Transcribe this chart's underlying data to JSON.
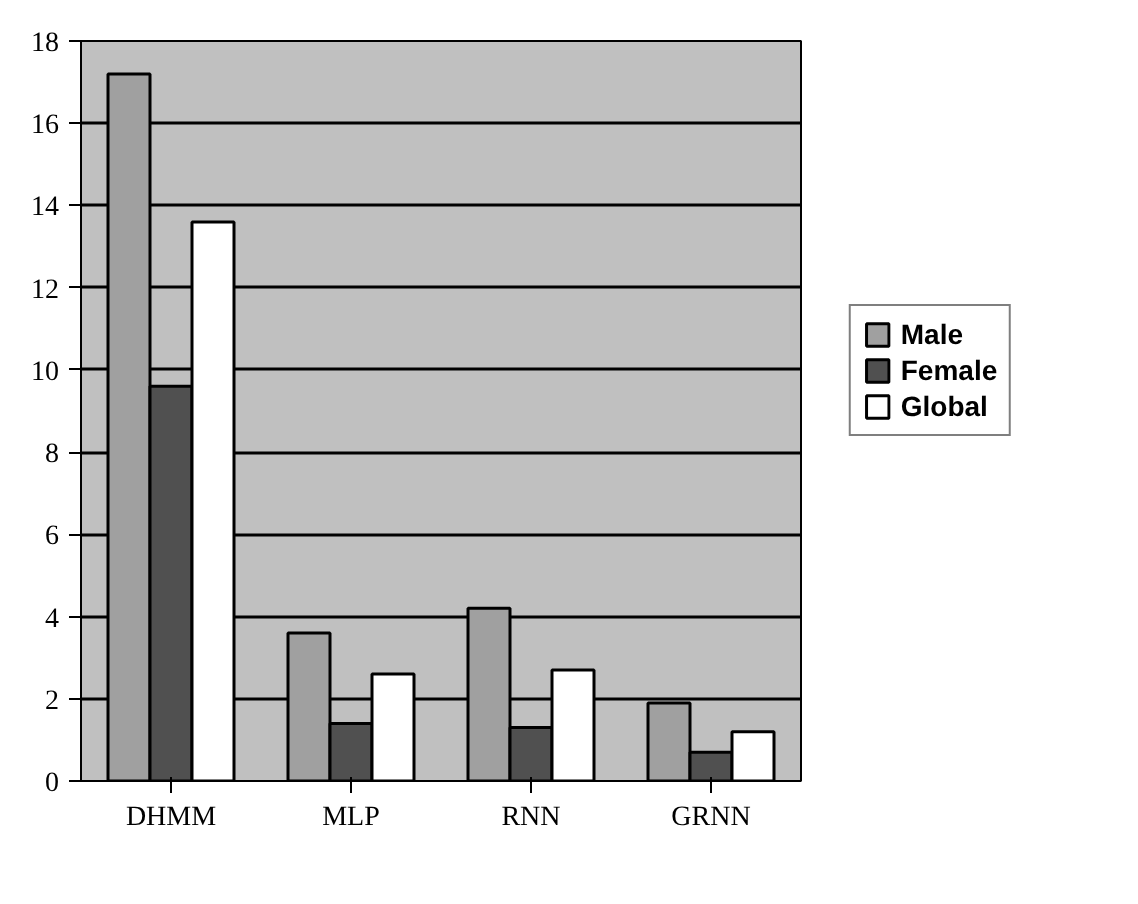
{
  "chart_data": {
    "type": "bar",
    "categories": [
      "DHMM",
      "MLP",
      "RNN",
      "GRNN"
    ],
    "series": [
      {
        "name": "Male",
        "color": "#a0a0a0",
        "values": [
          17.2,
          3.6,
          4.2,
          1.9
        ]
      },
      {
        "name": "Female",
        "color": "#505050",
        "values": [
          9.6,
          1.4,
          1.3,
          0.7
        ]
      },
      {
        "name": "Global",
        "color": "#ffffff",
        "values": [
          13.6,
          2.6,
          2.7,
          1.2
        ]
      }
    ],
    "ylim": [
      0,
      18
    ],
    "yticks": [
      0,
      2,
      4,
      6,
      8,
      10,
      12,
      14,
      16,
      18
    ],
    "grid": "y",
    "legend": "right"
  }
}
